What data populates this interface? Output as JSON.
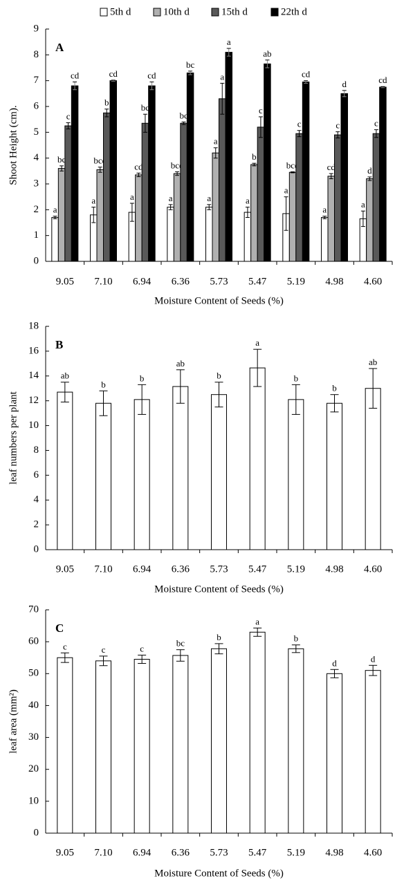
{
  "chart_data": [
    {
      "type": "bar",
      "label": "A",
      "ylabel": "Shoot Height (cm).",
      "xlabel": "Moisture Content of Seeds (%)",
      "categories": [
        "9.05",
        "7.10",
        "6.94",
        "6.36",
        "5.73",
        "5.47",
        "5.19",
        "4.98",
        "4.60"
      ],
      "ylim": [
        0,
        9
      ],
      "yticks": [
        0,
        1,
        2,
        3,
        4,
        5,
        6,
        7,
        8,
        9
      ],
      "legend": "top",
      "series": [
        {
          "name": "5th d",
          "color": "#ffffff",
          "values": [
            1.7,
            1.8,
            1.9,
            2.1,
            2.1,
            1.9,
            1.85,
            1.7,
            1.65
          ],
          "errors": [
            0.05,
            0.3,
            0.35,
            0.1,
            0.1,
            0.2,
            0.65,
            0.05,
            0.3
          ],
          "letters": [
            "a",
            "a",
            "a",
            "a",
            "a",
            "a",
            "a",
            "a",
            "a"
          ]
        },
        {
          "name": "10th d",
          "color": "#b0b0b0",
          "values": [
            3.6,
            3.55,
            3.35,
            3.4,
            4.2,
            3.75,
            3.45,
            3.3,
            3.2
          ],
          "errors": [
            0.1,
            0.1,
            0.07,
            0.07,
            0.2,
            0.05,
            0.02,
            0.1,
            0.07
          ],
          "letters": [
            "bc",
            "bcd",
            "cd",
            "bcd",
            "a",
            "b",
            "bcd",
            "cd",
            "d"
          ]
        },
        {
          "name": "15th d",
          "color": "#595959",
          "values": [
            5.25,
            5.75,
            5.35,
            5.35,
            6.3,
            5.2,
            4.95,
            4.9,
            4.95
          ],
          "errors": [
            0.12,
            0.15,
            0.35,
            0.05,
            0.6,
            0.4,
            0.12,
            0.12,
            0.15
          ],
          "letters": [
            "c",
            "b",
            "bc",
            "bc",
            "a",
            "c",
            "c",
            "c",
            "c"
          ]
        },
        {
          "name": "22th d",
          "color": "#000000",
          "values": [
            6.8,
            7.0,
            6.8,
            7.3,
            8.1,
            7.65,
            6.95,
            6.5,
            6.75
          ],
          "errors": [
            0.15,
            0.02,
            0.15,
            0.07,
            0.15,
            0.15,
            0.05,
            0.12,
            0.02
          ],
          "letters": [
            "cd",
            "cd",
            "cd",
            "bc",
            "a",
            "ab",
            "cd",
            "d",
            "cd"
          ]
        }
      ]
    },
    {
      "type": "bar",
      "label": "B",
      "ylabel": "leaf numbers per plant",
      "xlabel": "Moisture Content of Seeds (%)",
      "categories": [
        "9.05",
        "7.10",
        "6.94",
        "6.36",
        "5.73",
        "5.47",
        "5.19",
        "4.98",
        "4.60"
      ],
      "ylim": [
        0,
        18
      ],
      "yticks": [
        0,
        2,
        4,
        6,
        8,
        10,
        12,
        14,
        16,
        18
      ],
      "series": [
        {
          "color": "#ffffff",
          "values": [
            12.7,
            11.8,
            12.1,
            13.15,
            12.5,
            14.65,
            12.1,
            11.8,
            13.0
          ],
          "errors": [
            0.8,
            1.0,
            1.2,
            1.35,
            1.0,
            1.5,
            1.2,
            0.7,
            1.6
          ],
          "letters": [
            "ab",
            "b",
            "b",
            "ab",
            "b",
            "a",
            "b",
            "b",
            "ab"
          ]
        }
      ]
    },
    {
      "type": "bar",
      "label": "C",
      "ylabel": "leaf area (mm²)",
      "xlabel": "Moisture Content of Seeds (%)",
      "categories": [
        "9.05",
        "7.10",
        "6.94",
        "6.36",
        "5.73",
        "5.47",
        "5.19",
        "4.98",
        "4.60"
      ],
      "ylim": [
        0,
        70
      ],
      "yticks": [
        0,
        10,
        20,
        30,
        40,
        50,
        60,
        70
      ],
      "series": [
        {
          "color": "#ffffff",
          "values": [
            55,
            54,
            54.5,
            55.7,
            57.8,
            63,
            57.8,
            50,
            51
          ],
          "errors": [
            1.5,
            1.5,
            1.3,
            1.8,
            1.6,
            1.3,
            1.2,
            1.3,
            1.6
          ],
          "letters": [
            "c",
            "c",
            "c",
            "bc",
            "b",
            "a",
            "b",
            "d",
            "d"
          ]
        }
      ]
    }
  ]
}
